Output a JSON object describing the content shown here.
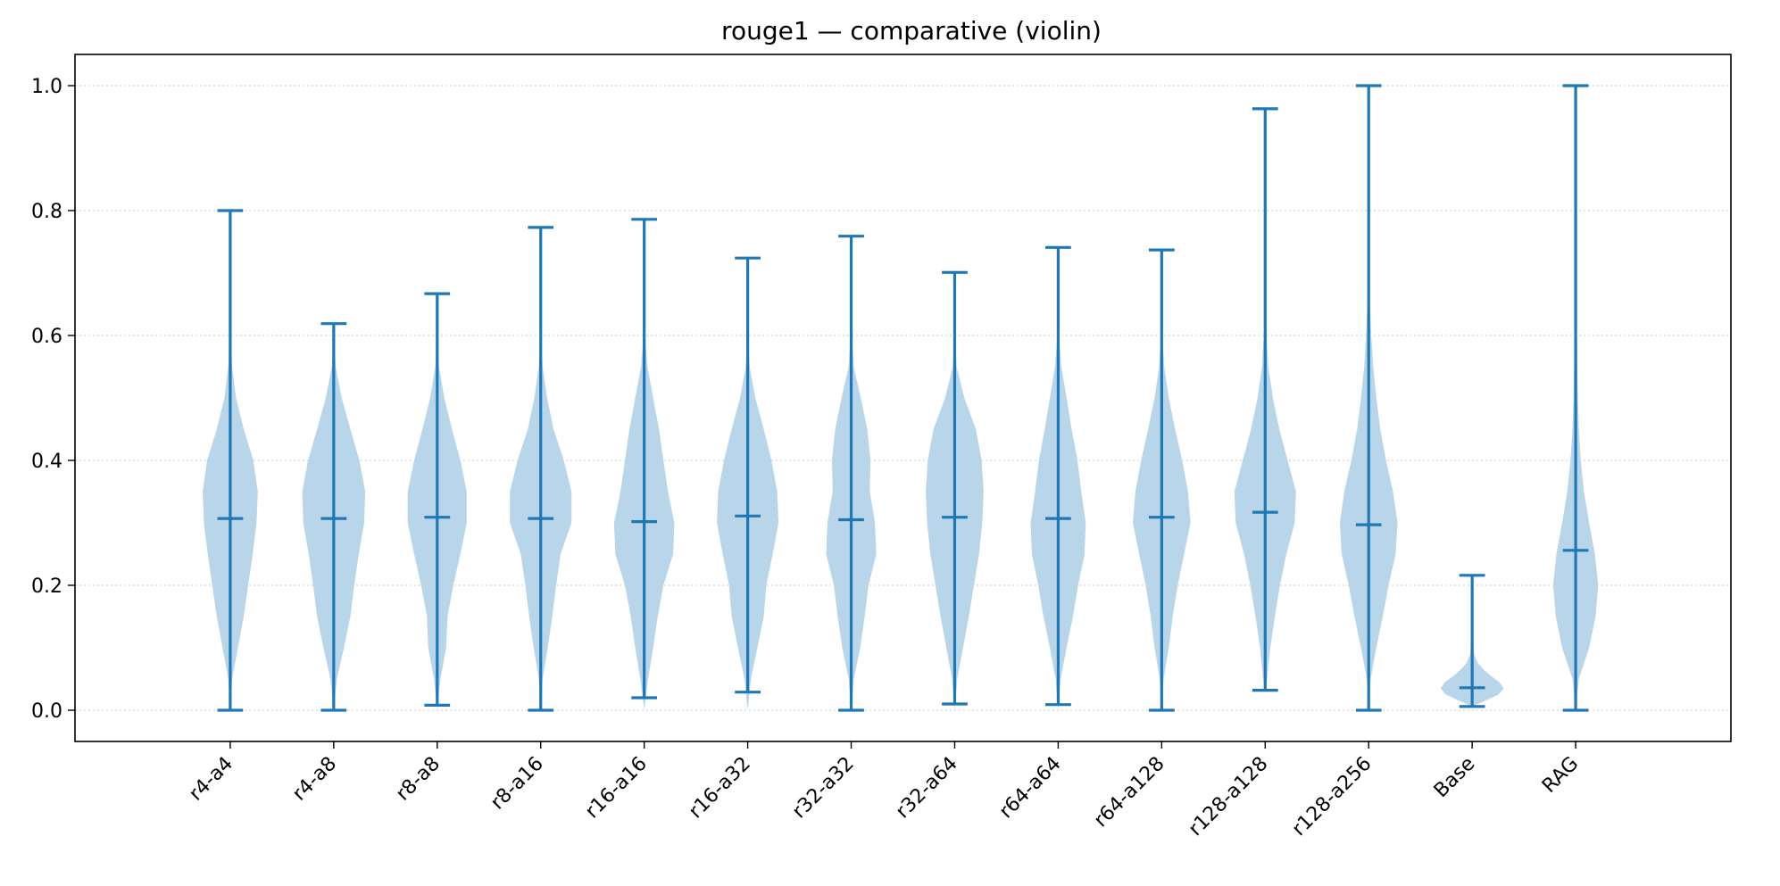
{
  "chart_data": {
    "type": "violin",
    "title": "rouge1 — comparative (violin)",
    "xlabel": "",
    "ylabel": "",
    "ylim": [
      -0.05,
      1.05
    ],
    "yticks": [
      0.0,
      0.2,
      0.4,
      0.6,
      0.8,
      1.0
    ],
    "ytick_labels": [
      "0.0",
      "0.2",
      "0.4",
      "0.6",
      "0.8",
      "1.0"
    ],
    "grid": "y-dotted",
    "colors": {
      "body": "#b9d5ea",
      "lines": "#1f77b4"
    },
    "categories": [
      "r4-a4",
      "r4-a8",
      "r8-a8",
      "r8-a16",
      "r16-a16",
      "r16-a32",
      "r32-a32",
      "r32-a64",
      "r64-a64",
      "r64-a128",
      "r128-a128",
      "r128-a256",
      "Base",
      "RAG"
    ],
    "min": [
      0.0,
      0.0,
      0.008,
      0.0,
      0.02,
      0.029,
      0.0,
      0.01,
      0.009,
      0.0,
      0.032,
      0.0,
      0.006,
      0.0
    ],
    "max": [
      0.8,
      0.619,
      0.667,
      0.773,
      0.786,
      0.724,
      0.759,
      0.701,
      0.741,
      0.737,
      0.963,
      1.0,
      0.216,
      1.0
    ],
    "median": [
      0.307,
      0.307,
      0.309,
      0.307,
      0.302,
      0.311,
      0.305,
      0.309,
      0.307,
      0.309,
      0.317,
      0.297,
      0.036,
      0.256
    ],
    "density_shape": [
      {
        "y": [
          0.0,
          0.05,
          0.1,
          0.15,
          0.2,
          0.25,
          0.3,
          0.35,
          0.4,
          0.45,
          0.5,
          0.55,
          0.6,
          0.65,
          0.7,
          0.75,
          0.8
        ],
        "w": [
          0.0,
          0.06,
          0.24,
          0.42,
          0.56,
          0.7,
          0.82,
          0.86,
          0.72,
          0.42,
          0.18,
          0.06,
          0.02,
          0.01,
          0.01,
          0.005,
          0.0
        ]
      },
      {
        "y": [
          0.0,
          0.05,
          0.1,
          0.15,
          0.2,
          0.25,
          0.3,
          0.35,
          0.4,
          0.45,
          0.5,
          0.55,
          0.6,
          0.62
        ],
        "w": [
          0.0,
          0.1,
          0.32,
          0.52,
          0.64,
          0.78,
          0.95,
          0.98,
          0.8,
          0.52,
          0.25,
          0.06,
          0.01,
          0.0
        ]
      },
      {
        "y": [
          0.0,
          0.05,
          0.1,
          0.15,
          0.2,
          0.25,
          0.3,
          0.35,
          0.4,
          0.45,
          0.5,
          0.55,
          0.6,
          0.67
        ],
        "w": [
          0.0,
          0.1,
          0.28,
          0.32,
          0.5,
          0.72,
          0.92,
          0.92,
          0.72,
          0.46,
          0.22,
          0.06,
          0.01,
          0.0
        ]
      },
      {
        "y": [
          0.0,
          0.05,
          0.1,
          0.15,
          0.2,
          0.25,
          0.3,
          0.35,
          0.4,
          0.45,
          0.5,
          0.55,
          0.6,
          0.65,
          0.7,
          0.77
        ],
        "w": [
          0.0,
          0.06,
          0.22,
          0.36,
          0.48,
          0.62,
          0.96,
          0.96,
          0.72,
          0.4,
          0.2,
          0.06,
          0.01,
          0.005,
          0.002,
          0.0
        ]
      },
      {
        "y": [
          0.0,
          0.05,
          0.1,
          0.15,
          0.2,
          0.25,
          0.3,
          0.35,
          0.4,
          0.45,
          0.5,
          0.55,
          0.6,
          0.65,
          0.7,
          0.79
        ],
        "w": [
          0.0,
          0.12,
          0.28,
          0.42,
          0.6,
          0.9,
          0.94,
          0.74,
          0.6,
          0.46,
          0.28,
          0.1,
          0.02,
          0.01,
          0.005,
          0.0
        ]
      },
      {
        "y": [
          0.0,
          0.05,
          0.1,
          0.15,
          0.2,
          0.25,
          0.3,
          0.35,
          0.4,
          0.45,
          0.5,
          0.55,
          0.6,
          0.65,
          0.72
        ],
        "w": [
          0.0,
          0.1,
          0.3,
          0.5,
          0.58,
          0.78,
          0.96,
          0.92,
          0.74,
          0.5,
          0.24,
          0.06,
          0.01,
          0.005,
          0.0
        ]
      },
      {
        "y": [
          0.0,
          0.05,
          0.1,
          0.15,
          0.2,
          0.25,
          0.3,
          0.35,
          0.4,
          0.45,
          0.5,
          0.55,
          0.6,
          0.65,
          0.7,
          0.76
        ],
        "w": [
          0.0,
          0.08,
          0.28,
          0.42,
          0.54,
          0.78,
          0.74,
          0.58,
          0.6,
          0.5,
          0.3,
          0.08,
          0.02,
          0.01,
          0.005,
          0.0
        ]
      },
      {
        "y": [
          0.0,
          0.05,
          0.1,
          0.15,
          0.2,
          0.25,
          0.3,
          0.35,
          0.4,
          0.45,
          0.5,
          0.55,
          0.6,
          0.65,
          0.7
        ],
        "w": [
          0.0,
          0.08,
          0.26,
          0.44,
          0.6,
          0.76,
          0.86,
          0.9,
          0.84,
          0.66,
          0.3,
          0.06,
          0.01,
          0.005,
          0.0
        ]
      },
      {
        "y": [
          0.0,
          0.05,
          0.1,
          0.15,
          0.2,
          0.25,
          0.3,
          0.35,
          0.4,
          0.45,
          0.5,
          0.55,
          0.6,
          0.65,
          0.74
        ],
        "w": [
          0.0,
          0.08,
          0.26,
          0.46,
          0.62,
          0.82,
          0.86,
          0.72,
          0.6,
          0.42,
          0.26,
          0.1,
          0.02,
          0.005,
          0.0
        ]
      },
      {
        "y": [
          0.0,
          0.05,
          0.1,
          0.15,
          0.2,
          0.25,
          0.3,
          0.35,
          0.4,
          0.45,
          0.5,
          0.55,
          0.6,
          0.65,
          0.74
        ],
        "w": [
          0.0,
          0.06,
          0.22,
          0.34,
          0.5,
          0.7,
          0.9,
          0.82,
          0.64,
          0.42,
          0.22,
          0.08,
          0.02,
          0.005,
          0.0
        ]
      },
      {
        "y": [
          0.03,
          0.05,
          0.1,
          0.15,
          0.2,
          0.25,
          0.3,
          0.35,
          0.4,
          0.45,
          0.5,
          0.55,
          0.6,
          0.65,
          0.7,
          0.8,
          0.96
        ],
        "w": [
          0.0,
          0.06,
          0.16,
          0.3,
          0.46,
          0.66,
          0.92,
          0.96,
          0.7,
          0.44,
          0.24,
          0.1,
          0.04,
          0.02,
          0.01,
          0.005,
          0.0
        ]
      },
      {
        "y": [
          0.0,
          0.05,
          0.1,
          0.15,
          0.2,
          0.25,
          0.3,
          0.35,
          0.4,
          0.45,
          0.5,
          0.55,
          0.6,
          0.65,
          0.7,
          0.8,
          1.0
        ],
        "w": [
          0.0,
          0.06,
          0.24,
          0.44,
          0.62,
          0.84,
          0.9,
          0.76,
          0.54,
          0.36,
          0.24,
          0.14,
          0.08,
          0.04,
          0.02,
          0.005,
          0.0
        ]
      },
      {
        "y": [
          0.006,
          0.015,
          0.025,
          0.035,
          0.045,
          0.055,
          0.065,
          0.075,
          0.09,
          0.12,
          0.216
        ],
        "w": [
          0.0,
          0.4,
          0.82,
          0.98,
          0.85,
          0.58,
          0.36,
          0.18,
          0.06,
          0.02,
          0.0
        ]
      },
      {
        "y": [
          0.0,
          0.05,
          0.1,
          0.15,
          0.2,
          0.25,
          0.3,
          0.35,
          0.4,
          0.45,
          0.5,
          0.55,
          0.6,
          0.65,
          0.7,
          0.75,
          0.8,
          1.0
        ],
        "w": [
          0.0,
          0.1,
          0.42,
          0.62,
          0.7,
          0.6,
          0.42,
          0.26,
          0.16,
          0.1,
          0.07,
          0.05,
          0.04,
          0.03,
          0.02,
          0.01,
          0.004,
          0.0
        ]
      }
    ]
  }
}
